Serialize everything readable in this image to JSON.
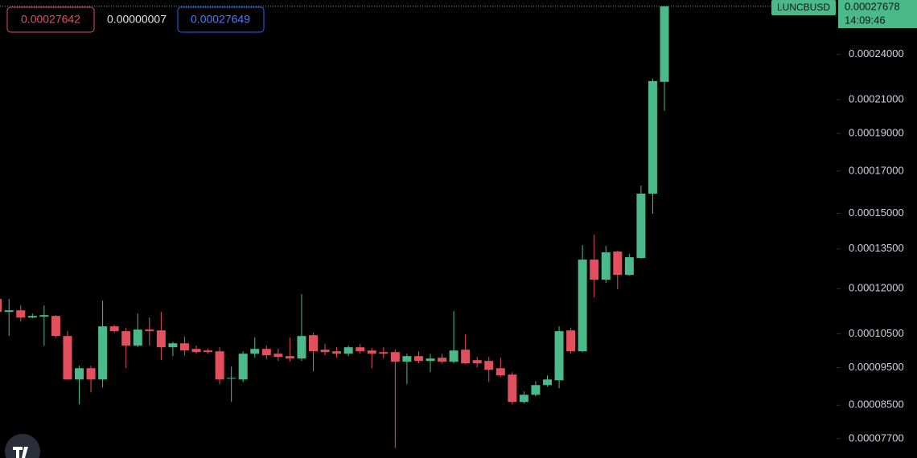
{
  "toolbar": {
    "sell": "0.00027642",
    "spread": "0.00000007",
    "buy": "0.00027649"
  },
  "chart_data": {
    "type": "candlestick",
    "symbol": "LUNCBUSD",
    "last_price_label": "0.00027678",
    "countdown": "14:09:46",
    "up_color": "#4cb98b",
    "down_color": "#e2505d",
    "log_scale": true,
    "ylim": [
      7.27e-05,
      0.000282
    ],
    "yticks": [
      {
        "value": 0.00024,
        "label": "0.00024000"
      },
      {
        "value": 0.00021,
        "label": "0.00021000"
      },
      {
        "value": 0.00019,
        "label": "0.00019000"
      },
      {
        "value": 0.00017,
        "label": "0.00017000"
      },
      {
        "value": 0.00015,
        "label": "0.00015000"
      },
      {
        "value": 0.000135,
        "label": "0.00013500"
      },
      {
        "value": 0.00012,
        "label": "0.00012000"
      },
      {
        "value": 0.000105,
        "label": "0.00010500"
      },
      {
        "value": 9.5e-05,
        "label": "0.00009500"
      },
      {
        "value": 8.5e-05,
        "label": "0.00008500"
      },
      {
        "value": 7.7e-05,
        "label": "0.00007700"
      }
    ],
    "open": [
      0.00011638,
      0.00011203,
      0.00011256,
      0.00011018,
      0.00011044,
      0.0001107,
      0.00010432,
      9.172e-05,
      9.483e-05,
      9.172e-05,
      0.00010734,
      0.00010582,
      0.00010138,
      0.00010632,
      0.00010607,
      0.0001009,
      0.0001021,
      0.00010042,
      9.994e-05,
      9.97e-05,
      9.194e-05,
      9.172e-05,
      9.899e-05,
      0.00010042,
      9.899e-05,
      9.829e-05,
      9.759e-05,
      0.00010456,
      0.00010018,
      9.97e-05,
      9.899e-05,
      0.0001009,
      9.994e-05,
      9.946e-05,
      9.946e-05,
      9.666e-05,
      9.829e-05,
      9.689e-05,
      9.782e-05,
      9.666e-05,
      0.00010018,
      9.712e-05,
      9.689e-05,
      9.483e-05,
      9.305e-05,
      8.581e-05,
      8.766e-05,
      9.021e-05,
      9.15e-05,
      0.00010607,
      9.97e-05,
      0.00013079,
      0.00012321,
      0.00013394,
      0.00012499,
      0.00013141,
      0.00015898,
      0.00022133
    ],
    "high": [
      0.0001175,
      0.00011638,
      0.00011417,
      0.0001115,
      0.00011417,
      0.00011097,
      0.00010582,
      9.551e-05,
      9.551e-05,
      0.00011583,
      0.00010784,
      0.00010683,
      0.0001115,
      0.00011018,
      0.00011203,
      0.00010258,
      0.00010407,
      0.00010138,
      0.00010042,
      0.0001009,
      9.528e-05,
      9.97e-05,
      0.00010382,
      0.00010138,
      0.00010042,
      0.00010382,
      0.00011807,
      0.00010531,
      0.00010186,
      0.0001009,
      0.00010138,
      0.00010186,
      0.00010066,
      0.0001009,
      0.00010018,
      9.899e-05,
      9.97e-05,
      9.899e-05,
      9.899e-05,
      0.0001123,
      0.00010481,
      9.805e-05,
      9.805e-05,
      9.782e-05,
      9.371e-05,
      8.852e-05,
      9.129e-05,
      9.283e-05,
      0.00010734,
      0.00010683,
      0.00013649,
      0.00014078,
      0.0001362,
      0.00013426,
      0.00013298,
      0.0001628,
      0.00022346,
      0.00027678
    ],
    "low": [
      0.00010432,
      0.00010432,
      0.00010887,
      0.00010992,
      0.00010138,
      0.00010382,
      9.172e-05,
      8.52e-05,
      8.83e-05,
      8.957e-05,
      0.00010531,
      9.483e-05,
      0.0001009,
      0.00010138,
      9.712e-05,
      9.829e-05,
      9.852e-05,
      9.899e-05,
      9.899e-05,
      9.043e-05,
      8.581e-05,
      9.107e-05,
      9.782e-05,
      9.736e-05,
      9.689e-05,
      9.666e-05,
      9.689e-05,
      9.394e-05,
      9.852e-05,
      9.782e-05,
      9.829e-05,
      9.899e-05,
      9.483e-05,
      9.759e-05,
      7.491e-05,
      9.043e-05,
      9.62e-05,
      9.371e-05,
      9.62e-05,
      9.62e-05,
      9.597e-05,
      9.506e-05,
      9.107e-05,
      9.239e-05,
      8.52e-05,
      8.54e-05,
      8.725e-05,
      8.979e-05,
      8.936e-05,
      9.899e-05,
      9.946e-05,
      0.00011693,
      0.00012204,
      0.00011977,
      0.00012469,
      0.0001311,
      0.00014978,
      0.00020316
    ],
    "close": [
      0.00011203,
      0.00011256,
      0.00011018,
      0.0001107,
      0.00011097,
      0.00010432,
      9.172e-05,
      9.483e-05,
      9.172e-05,
      0.00010734,
      0.00010582,
      0.00010138,
      0.00010632,
      0.00010582,
      0.0001009,
      0.0001021,
      9.994e-05,
      9.946e-05,
      9.946e-05,
      9.172e-05,
      9.216e-05,
      9.899e-05,
      0.00010042,
      9.852e-05,
      9.805e-05,
      9.759e-05,
      0.00010432,
      9.97e-05,
      9.946e-05,
      9.899e-05,
      0.0001009,
      9.97e-05,
      9.899e-05,
      9.899e-05,
      9.666e-05,
      9.829e-05,
      9.689e-05,
      9.759e-05,
      9.666e-05,
      9.994e-05,
      9.62e-05,
      9.62e-05,
      9.438e-05,
      9.283e-05,
      8.581e-05,
      8.766e-05,
      9.021e-05,
      9.172e-05,
      0.00010582,
      9.97e-05,
      0.00013079,
      0.00012321,
      0.00013362,
      0.00012499,
      0.00013172,
      0.00015898,
      0.00022186,
      0.00027678
    ]
  }
}
